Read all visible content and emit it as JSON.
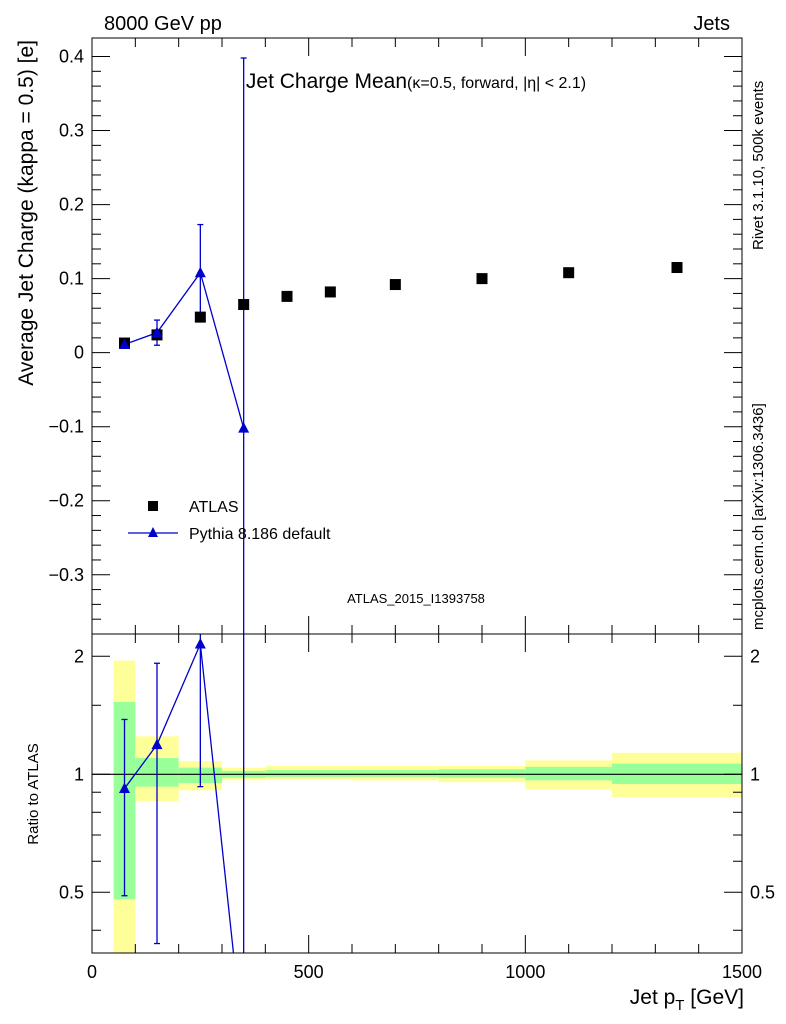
{
  "header": {
    "energy": "8000 GeV pp",
    "category": "Jets"
  },
  "side_labels": {
    "rivet": "Rivet 3.1.10,  500k events",
    "mcplots": "mcplots.cern.ch [arXiv:1306.3436]"
  },
  "chart_data": [
    {
      "type": "scatter",
      "title_main": "Jet Charge Mean",
      "title_sub": "(κ=0.5, forward, |η| < 2.1)",
      "ylabel": "Average Jet Charge (kappa = 0.5) [e]",
      "xlim": [
        0,
        1500
      ],
      "ylim": [
        -0.38,
        0.425
      ],
      "yticks": [
        -0.3,
        -0.2,
        -0.1,
        0,
        0.1,
        0.2,
        0.3,
        0.4
      ],
      "ytick_labels": [
        "−0.3",
        "−0.2",
        "−0.1",
        "0",
        "0.1",
        "0.2",
        "0.3",
        "0.4"
      ],
      "watermark": "ATLAS_2015_I1393758",
      "legend_position": "bottom-left",
      "series": [
        {
          "name": "ATLAS",
          "marker": "square",
          "color": "#000000",
          "x": [
            75,
            150,
            250,
            350,
            450,
            550,
            700,
            900,
            1100,
            1350
          ],
          "y": [
            0.013,
            0.024,
            0.048,
            0.065,
            0.076,
            0.082,
            0.092,
            0.1,
            0.108,
            0.115
          ]
        },
        {
          "name": "Pythia 8.186 default",
          "marker": "triangle",
          "color": "#0000cc",
          "x": [
            75,
            150,
            250,
            350
          ],
          "y": [
            0.011,
            0.027,
            0.108,
            -0.102
          ],
          "err_low": [
            0.003,
            0.017,
            0.06,
            0.5
          ],
          "err_high": [
            0.003,
            0.017,
            0.065,
            0.5
          ]
        }
      ]
    },
    {
      "type": "line",
      "ylabel": "Ratio to ATLAS",
      "xlabel": "Jet p_T [GeV]",
      "xlim": [
        0,
        1500
      ],
      "ylim": [
        0.35,
        2.28
      ],
      "xticks": [
        0,
        500,
        1000,
        1500
      ],
      "xtick_labels": [
        "0",
        "500",
        "1000",
        "1500"
      ],
      "yticks": [
        0.5,
        1,
        2
      ],
      "ytick_labels": [
        "0.5",
        "1",
        "2"
      ],
      "uncertainty_bands": {
        "bin_edges": [
          50,
          100,
          200,
          300,
          400,
          600,
          800,
          1000,
          1200,
          1500
        ],
        "stat_low": [
          0.48,
          0.93,
          0.95,
          0.98,
          0.985,
          0.985,
          0.98,
          0.965,
          0.945
        ],
        "stat_high": [
          1.53,
          1.1,
          1.04,
          1.02,
          1.025,
          1.025,
          1.03,
          1.045,
          1.065
        ],
        "total_low": [
          0.35,
          0.855,
          0.91,
          0.965,
          0.97,
          0.965,
          0.955,
          0.915,
          0.875
        ],
        "total_high": [
          1.95,
          1.25,
          1.08,
          1.04,
          1.05,
          1.05,
          1.05,
          1.085,
          1.135
        ],
        "stat_color": "#99ff99",
        "total_color": "#ffff99"
      },
      "series": [
        {
          "name": "Pythia 8.186 default",
          "color": "#0000cc",
          "x": [
            75,
            150,
            250,
            350
          ],
          "y": [
            0.92,
            1.19,
            2.15,
            0.2
          ],
          "err_low": [
            0.43,
            0.82,
            1.22,
            0.2
          ],
          "err_high": [
            0.46,
            0.73,
            0.15,
            2.1
          ]
        }
      ]
    }
  ],
  "colors": {
    "frame": "#000000",
    "watermark": "#999999",
    "side_text": "#888888"
  }
}
